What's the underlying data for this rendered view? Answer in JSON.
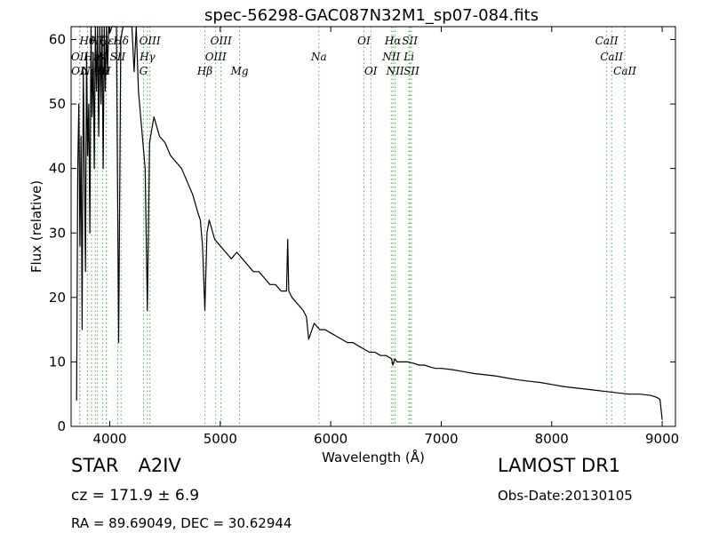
{
  "chart_data": {
    "type": "line",
    "title": "spec-56298-GAC087N32M1_sp07-084.fits",
    "xlabel": "Wavelength (Å)",
    "ylabel": "Flux (relative)",
    "xlim": [
      3650,
      9120
    ],
    "ylim": [
      0,
      62
    ],
    "xticks": [
      4000,
      5000,
      6000,
      7000,
      8000,
      9000
    ],
    "yticks": [
      0,
      10,
      20,
      30,
      40,
      50,
      60
    ],
    "xtick_labels": [
      "4000",
      "5000",
      "6000",
      "7000",
      "8000",
      "9000"
    ],
    "ytick_labels": [
      "0",
      "10",
      "20",
      "30",
      "40",
      "50",
      "60"
    ],
    "grid": false,
    "spectrum": {
      "x": [
        3700,
        3710,
        3720,
        3730,
        3740,
        3750,
        3760,
        3770,
        3780,
        3790,
        3800,
        3810,
        3820,
        3830,
        3840,
        3850,
        3860,
        3870,
        3880,
        3890,
        3900,
        3910,
        3920,
        3930,
        3940,
        3950,
        3960,
        3970,
        3980,
        3990,
        4000,
        4020,
        4040,
        4060,
        4080,
        4100,
        4120,
        4140,
        4160,
        4180,
        4200,
        4220,
        4240,
        4260,
        4280,
        4300,
        4320,
        4340,
        4360,
        4380,
        4400,
        4450,
        4500,
        4550,
        4600,
        4650,
        4700,
        4750,
        4800,
        4820,
        4840,
        4861,
        4880,
        4900,
        4950,
        5000,
        5050,
        5100,
        5150,
        5200,
        5250,
        5300,
        5350,
        5400,
        5450,
        5500,
        5550,
        5600,
        5610,
        5620,
        5650,
        5700,
        5750,
        5780,
        5800,
        5850,
        5900,
        5950,
        6000,
        6050,
        6100,
        6150,
        6200,
        6250,
        6300,
        6350,
        6400,
        6450,
        6500,
        6550,
        6563,
        6580,
        6600,
        6650,
        6700,
        6750,
        6800,
        6850,
        6900,
        6950,
        7000,
        7100,
        7200,
        7300,
        7400,
        7500,
        7600,
        7700,
        7800,
        7900,
        8000,
        8100,
        8200,
        8300,
        8400,
        8500,
        8600,
        8700,
        8800,
        8900,
        8950,
        8980,
        9000
      ],
      "y": [
        4,
        40,
        50,
        28,
        45,
        15,
        55,
        42,
        24,
        58,
        42,
        50,
        30,
        62,
        48,
        58,
        40,
        62,
        52,
        62,
        45,
        62,
        50,
        62,
        40,
        62,
        52,
        62,
        55,
        62,
        61,
        62,
        62,
        62,
        13,
        60,
        62,
        62,
        62,
        62,
        62,
        55,
        62,
        52,
        48,
        44,
        40,
        18,
        44,
        46,
        48,
        45,
        44,
        42,
        41,
        40,
        38,
        36,
        33,
        32,
        28,
        18,
        30,
        32,
        29,
        28,
        27,
        26,
        27,
        26,
        25,
        24,
        24,
        23,
        22,
        22,
        21,
        21,
        29,
        21,
        20,
        19,
        18,
        17,
        13.5,
        16,
        15,
        15,
        14.5,
        14,
        13.5,
        13,
        13,
        12.5,
        12,
        11.5,
        11.5,
        11,
        11,
        10.5,
        9.5,
        10.5,
        10,
        10,
        10,
        9.8,
        9.5,
        9.5,
        9.2,
        9,
        9,
        8.8,
        8.5,
        8.2,
        8,
        7.8,
        7.5,
        7.2,
        7,
        6.8,
        6.5,
        6.2,
        6,
        5.8,
        5.6,
        5.4,
        5.2,
        5,
        5,
        4.8,
        4.5,
        4.2,
        1
      ]
    },
    "lines": [
      {
        "wave": 3727,
        "label": "OII",
        "row": 1
      },
      {
        "wave": 3729,
        "label": "OII",
        "row": 2
      },
      {
        "wave": 3798,
        "label": "Hθ",
        "row": 0
      },
      {
        "wave": 3835,
        "label": "Hη",
        "row": 1
      },
      {
        "wave": 3869,
        "label": "NeIII",
        "row": 2
      },
      {
        "wave": 3889,
        "label": "Hζ",
        "row": 0
      },
      {
        "wave": 3934,
        "label": "K",
        "row": 1
      },
      {
        "wave": 3968,
        "label": "H",
        "row": 2
      },
      {
        "wave": 3970,
        "label": "Hε",
        "row": 0
      },
      {
        "wave": 4072,
        "label": "SII",
        "row": 1
      },
      {
        "wave": 4102,
        "label": "Hδ",
        "row": 0
      },
      {
        "wave": 4305,
        "label": "G",
        "row": 2
      },
      {
        "wave": 4341,
        "label": "Hγ",
        "row": 1
      },
      {
        "wave": 4363,
        "label": "OIII",
        "row": 0
      },
      {
        "wave": 4861,
        "label": "Hβ",
        "row": 2
      },
      {
        "wave": 4959,
        "label": "OIII",
        "row": 1
      },
      {
        "wave": 5007,
        "label": "OIII",
        "row": 0
      },
      {
        "wave": 5175,
        "label": "Mg",
        "row": 2
      },
      {
        "wave": 5893,
        "label": "Na",
        "row": 1
      },
      {
        "wave": 6300,
        "label": "OI",
        "row": 0
      },
      {
        "wave": 6363,
        "label": "OI",
        "row": 2
      },
      {
        "wave": 6548,
        "label": "NII",
        "row": 1
      },
      {
        "wave": 6563,
        "label": "Hα",
        "row": 0
      },
      {
        "wave": 6583,
        "label": "NII",
        "row": 2
      },
      {
        "wave": 6708,
        "label": "Li",
        "row": 1
      },
      {
        "wave": 6716,
        "label": "SII",
        "row": 0
      },
      {
        "wave": 6731,
        "label": "SII",
        "row": 2
      },
      {
        "wave": 8498,
        "label": "CaII",
        "row": 0
      },
      {
        "wave": 8542,
        "label": "CaII",
        "row": 1
      },
      {
        "wave": 8662,
        "label": "CaII",
        "row": 2
      }
    ],
    "colors": {
      "spectrum": "#000000",
      "lines": "#4caf50"
    }
  },
  "info": {
    "class": "STAR",
    "subclass": "A2IV",
    "cz": "cz = 171.9 ± 6.9",
    "radec": "RA = 89.69049, DEC = 30.62944",
    "survey": "LAMOST DR1",
    "obsdate": "Obs-Date:20130105"
  }
}
